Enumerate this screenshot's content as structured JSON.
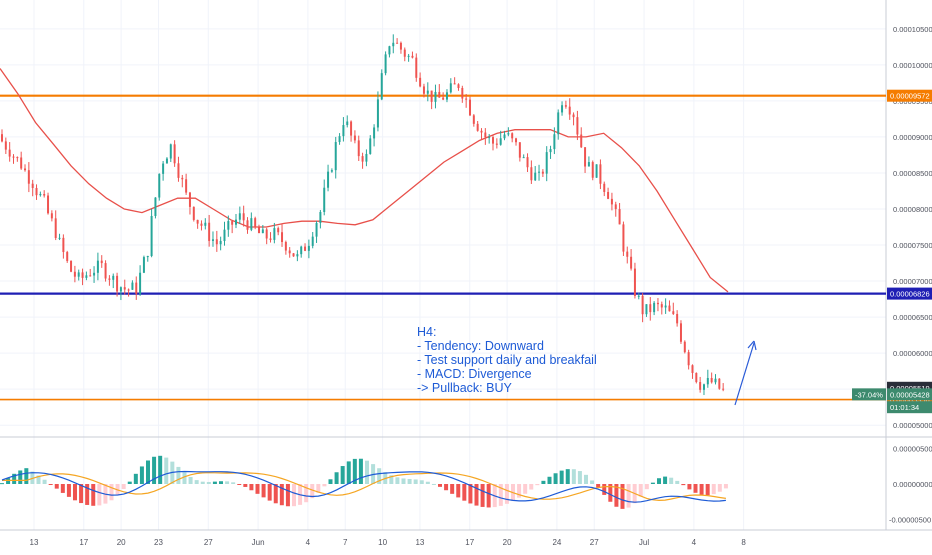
{
  "chart_data": {
    "type": "candlestick",
    "timeframe": "H4",
    "price_axis": {
      "ylim": [
        4.85e-05,
        0.000109
      ],
      "ticks": [
        "0.00010500",
        "0.00010000",
        "0.00009500",
        "0.00009000",
        "0.00008500",
        "0.00008000",
        "0.00007500",
        "0.00007000",
        "0.00006500",
        "0.00006000",
        "0.00005500",
        "0.00005000"
      ],
      "tick_values": [
        0.000105,
        0.0001,
        9.5e-05,
        9e-05,
        8.5e-05,
        8e-05,
        7.5e-05,
        7e-05,
        6.5e-05,
        6e-05,
        5.5e-05,
        5e-05
      ]
    },
    "x_axis": {
      "ticks": [
        "13",
        "17",
        "20",
        "23",
        "27",
        "Jun",
        "4",
        "7",
        "10",
        "13",
        "17",
        "20",
        "24",
        "27",
        "Jul",
        "4",
        "8"
      ],
      "tick_index": [
        0,
        4,
        7,
        10,
        14,
        18,
        22,
        25,
        28,
        31,
        35,
        38,
        42,
        45,
        49,
        53,
        57
      ]
    },
    "horizontal_levels": [
      {
        "name": "resistance",
        "value": 9.572e-05,
        "label": "0.00009572",
        "color": "#f57c00"
      },
      {
        "name": "support",
        "value": 6.826e-05,
        "label": "0.00006826",
        "color": "#1f1fb4"
      },
      {
        "name": "daily-support",
        "value": 5.356e-05,
        "label": "0.00005356",
        "color": "#f57c00"
      }
    ],
    "price_badges": [
      {
        "label": "0.00005519",
        "value": 5.519e-05,
        "color": "#2a2e39"
      },
      {
        "label": "0.00005428",
        "value": 5.428e-05,
        "color": "#3d8a6e",
        "change": "-37.04%"
      },
      {
        "label": "01:01:34",
        "value": 5.25e-05,
        "color": "#3d8a6e"
      }
    ],
    "series": [
      {
        "name": "price",
        "type": "candlestick",
        "up_color": "#26a69a",
        "down_color": "#ef5350",
        "close": [
          8.8e-05,
          8.6e-05,
          8.35e-05,
          8.05e-05,
          7.65e-05,
          7.2e-05,
          7e-05,
          7.15e-05,
          7.2e-05,
          7e-05,
          6.88e-05,
          6.9e-05,
          7.5e-05,
          8.6e-05,
          8.9e-05,
          8.3e-05,
          7.9e-05,
          7.7e-05,
          7.5e-05,
          7.75e-05,
          7.9e-05,
          7.75e-05,
          7.6e-05,
          7.65e-05,
          7.5e-05,
          7.3e-05,
          7.6e-05,
          8e-05,
          8.7e-05,
          9.3e-05,
          8.8e-05,
          8.7e-05,
          9.55e-05,
          0.000104,
          0.000102,
          0.0001005,
          9.65e-05,
          9.5e-05,
          9.6e-05,
          9.75e-05,
          9.35e-05,
          9.05e-05,
          8.9e-05,
          9.05e-05,
          8.85e-05,
          8.55e-05,
          8.4e-05,
          8.9e-05,
          9.6e-05,
          9.3e-05,
          8.6e-05,
          8.5e-05,
          8.2e-05,
          7.7e-05,
          7e-05,
          6.55e-05,
          6.65e-05,
          6.6e-05,
          6.4e-05,
          5.85e-05,
          5.55e-05,
          5.6e-05,
          5.45e-05
        ]
      },
      {
        "name": "MA",
        "type": "line",
        "color": "#e8504a",
        "values": [
          9.95e-05,
          9.6e-05,
          9.2e-05,
          8.9e-05,
          8.6e-05,
          8.35e-05,
          8.15e-05,
          8e-05,
          7.95e-05,
          8.05e-05,
          8.15e-05,
          8.15e-05,
          8e-05,
          7.85e-05,
          7.75e-05,
          7.75e-05,
          7.8e-05,
          7.83e-05,
          7.83e-05,
          7.8e-05,
          7.78e-05,
          7.85e-05,
          8.05e-05,
          8.25e-05,
          8.45e-05,
          8.65e-05,
          8.8e-05,
          8.95e-05,
          9.05e-05,
          9.1e-05,
          9.1e-05,
          9.1e-05,
          9e-05,
          9e-05,
          9.05e-05,
          8.85e-05,
          8.6e-05,
          8.25e-05,
          7.85e-05,
          7.45e-05,
          7.05e-05,
          6.85e-05
        ]
      }
    ],
    "macd": {
      "ylim": [
        -6.5e-06,
        6.5e-06
      ],
      "ticks": [
        "0.00000500",
        "0.00000000",
        "-0.00000500"
      ],
      "tick_values": [
        5e-06,
        0,
        -5e-06
      ],
      "macd_color": "#1e5bd6",
      "signal_color": "#f5a623",
      "hist_colors": {
        "pos_strong": "#26a69a",
        "pos_weak": "#b2dfdb",
        "neg_strong": "#ef5350",
        "neg_weak": "#ffcdd2"
      }
    },
    "annotation": {
      "lines": [
        "H4:",
        "- Tendency: Downward",
        "- Test support daily and breakfail",
        "- MACD: Divergence",
        "-> Pullback: BUY"
      ],
      "color": "#1e5bd6"
    },
    "arrow_color": "#2a5bd7"
  }
}
